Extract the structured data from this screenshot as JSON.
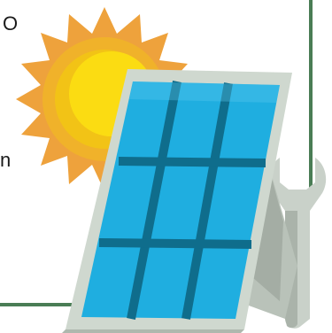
{
  "text_fragments": {
    "top": "O",
    "middle": "n"
  },
  "colors": {
    "frame_border": "#4a7d55",
    "sun_outer": "#eea23c",
    "sun_mid": "#f2c316",
    "sun_inner": "#fbdc12",
    "panel_frame": "#cfd8cf",
    "panel_frame_shadow": "#aeb8ae",
    "panel_cells": "#1faee0",
    "panel_grid": "#0f6d8c",
    "stand": "#b9c2b9",
    "wrench": "#c9d1c9",
    "wrench_shadow": "#aab3aa"
  },
  "icons": {
    "sun": "sun-icon",
    "solar_panel": "solar-panel-icon",
    "wrench": "wrench-icon"
  }
}
